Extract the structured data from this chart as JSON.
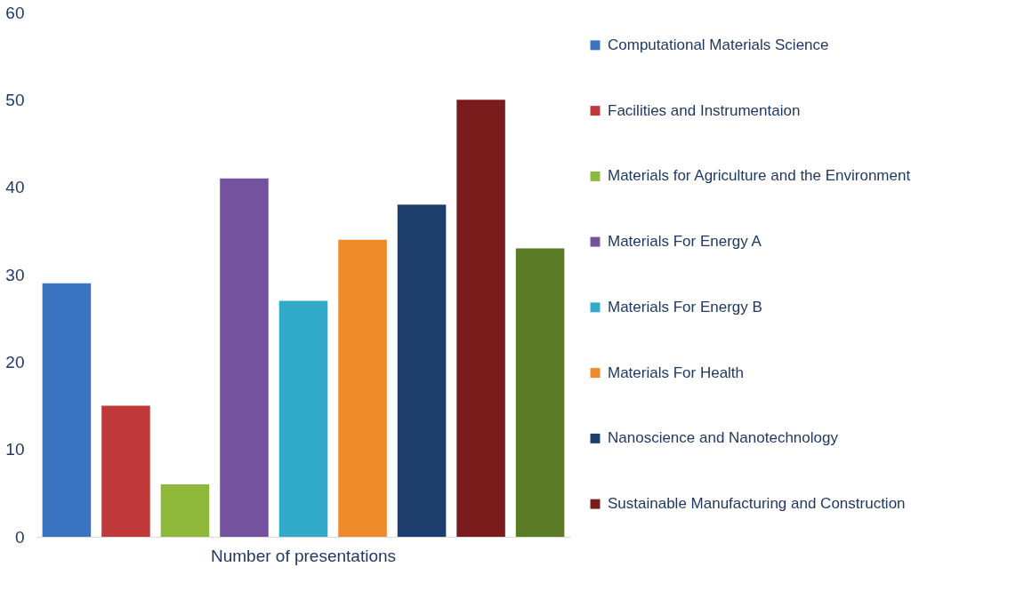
{
  "chart_data": {
    "type": "bar",
    "categories": [
      "Number of presentations"
    ],
    "ylim": [
      0,
      60
    ],
    "yticks": [
      0,
      10,
      20,
      30,
      40,
      50,
      60
    ],
    "grid": false,
    "legend": "right",
    "series": [
      {
        "name": "Computational Materials Science",
        "color": "#3a74c0",
        "values": [
          29
        ]
      },
      {
        "name": "Facilities and Instrumentaion",
        "color": "#c0393a",
        "values": [
          15
        ]
      },
      {
        "name": "Materials for Agriculture and the Environment",
        "color": "#8db83a",
        "values": [
          6
        ]
      },
      {
        "name": "Materials For Energy A",
        "color": "#74529e",
        "values": [
          41
        ]
      },
      {
        "name": "Materials For Energy B",
        "color": "#31a9c8",
        "values": [
          27
        ]
      },
      {
        "name": "Materials For Health",
        "color": "#ef8a2a",
        "values": [
          34
        ]
      },
      {
        "name": "Nanoscience and Nanotechnology",
        "color": "#1e3f6e",
        "values": [
          38
        ]
      },
      {
        "name": "Sustainable Manufacturing and Construction",
        "color": "#7a1c1c",
        "values": [
          50
        ]
      },
      {
        "color": "#5a7a25",
        "values": [
          33
        ]
      }
    ]
  }
}
